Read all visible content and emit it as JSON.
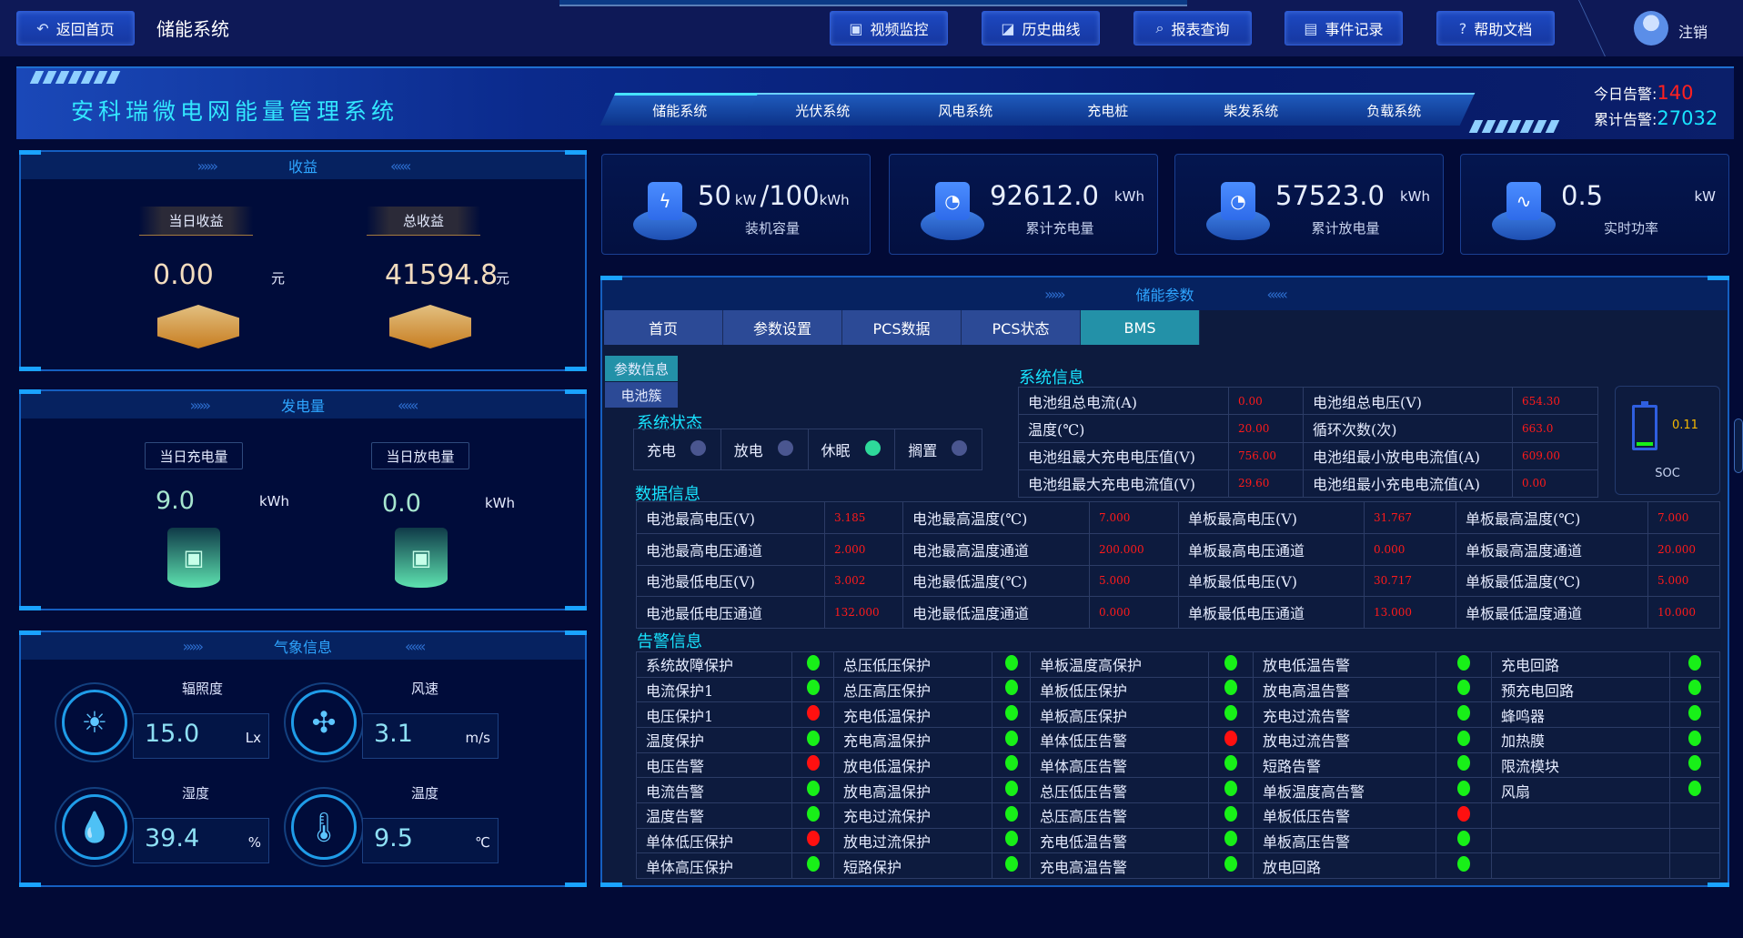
{
  "header": {
    "back_label": "返回首页",
    "page_title": "储能系统",
    "nav": [
      {
        "label": "视频监控",
        "icon": "video-icon"
      },
      {
        "label": "历史曲线",
        "icon": "chart-icon"
      },
      {
        "label": "报表查询",
        "icon": "search-icon"
      },
      {
        "label": "事件记录",
        "icon": "document-icon"
      },
      {
        "label": "帮助文档",
        "icon": "help-icon"
      }
    ],
    "logout_label": "注销"
  },
  "banner": {
    "title": "安科瑞微电网能量管理系统",
    "tabs": [
      "储能系统",
      "光伏系统",
      "风电系统",
      "充电桩",
      "柴发系统",
      "负载系统"
    ],
    "active_tab": 0,
    "today_alarm_label": "今日告警:",
    "today_alarm": "140",
    "total_alarm_label": "累计告警:",
    "total_alarm": "27032",
    "colors": {
      "today_alarm": "#ff2020",
      "total_alarm": "#19e4ff"
    }
  },
  "income": {
    "title": "收益",
    "today_label": "当日收益",
    "today_value": "0.00",
    "total_label": "总收益",
    "total_value": "41594.8",
    "unit": "元"
  },
  "energy": {
    "title": "发电量",
    "charge_label": "当日充电量",
    "charge_value": "9.0",
    "discharge_label": "当日放电量",
    "discharge_value": "0.0",
    "unit": "kWh"
  },
  "weather": {
    "title": "气象信息",
    "items": [
      {
        "label": "辐照度",
        "value": "15.0",
        "unit": "Lx",
        "icon": "sun-icon"
      },
      {
        "label": "风速",
        "value": "3.1",
        "unit": "m/s",
        "icon": "fan-icon"
      },
      {
        "label": "湿度",
        "value": "39.4",
        "unit": "%",
        "icon": "humidity-icon"
      },
      {
        "label": "温度",
        "value": "9.5",
        "unit": "℃",
        "icon": "thermometer-icon"
      }
    ]
  },
  "cards": [
    {
      "value": "50",
      "unit_inline": "kW",
      "value2": "/100",
      "unit": "kWh",
      "label": "装机容量",
      "icon": "battery-icon"
    },
    {
      "value": "92612.0",
      "unit": "kWh",
      "label": "累计充电量",
      "icon": "meter-icon"
    },
    {
      "value": "57523.0",
      "unit": "kWh",
      "label": "累计放电量",
      "icon": "meter-icon"
    },
    {
      "value": "0.5",
      "unit": "kW",
      "label": "实时功率",
      "icon": "pulse-icon"
    }
  ],
  "params": {
    "title": "储能参数",
    "tabs": [
      "首页",
      "参数设置",
      "PCS数据",
      "PCS状态",
      "BMS"
    ],
    "active_tab": 4,
    "subtabs": [
      "参数信息",
      "电池簇"
    ],
    "active_subtab": 0,
    "status_title": "系统状态",
    "status": [
      {
        "label": "充电",
        "on": false
      },
      {
        "label": "放电",
        "on": false
      },
      {
        "label": "休眠",
        "on": true
      },
      {
        "label": "搁置",
        "on": false
      }
    ],
    "sysinfo_title": "系统信息",
    "sysinfo": [
      [
        "电池组总电流(A)",
        "0.00",
        "电池组总电压(V)",
        "654.30"
      ],
      [
        "温度(℃)",
        "20.00",
        "循环次数(次)",
        "663.0"
      ],
      [
        "电池组最大充电电压值(V)",
        "756.00",
        "电池组最小放电电流值(A)",
        "609.00"
      ],
      [
        "电池组最大充电电流值(V)",
        "29.60",
        "电池组最小充电电流值(A)",
        "0.00"
      ]
    ],
    "soc_label": "SOC",
    "soc_value": "0.11",
    "data_title": "数据信息",
    "data": [
      [
        "电池最高电压(V)",
        "3.185",
        "电池最高温度(℃)",
        "7.000",
        "单板最高电压(V)",
        "31.767",
        "单板最高温度(℃)",
        "7.000"
      ],
      [
        "电池最高电压通道",
        "2.000",
        "电池最高温度通道",
        "200.000",
        "单板最高电压通道",
        "0.000",
        "单板最高温度通道",
        "20.000"
      ],
      [
        "电池最低电压(V)",
        "3.002",
        "电池最低温度(℃)",
        "5.000",
        "单板最低电压(V)",
        "30.717",
        "单板最低温度(℃)",
        "5.000"
      ],
      [
        "电池最低电压通道",
        "132.000",
        "电池最低温度通道",
        "0.000",
        "单板最低电压通道",
        "13.000",
        "单板最低温度通道",
        "10.000"
      ]
    ],
    "alarm_title": "告警信息",
    "alarms": [
      [
        [
          "系统故障保护",
          "ok"
        ],
        [
          "总压低压保护",
          "ok"
        ],
        [
          "单板温度高保护",
          "ok"
        ],
        [
          "放电低温告警",
          "ok"
        ],
        [
          "充电回路",
          "ok"
        ]
      ],
      [
        [
          "电流保护1",
          "ok"
        ],
        [
          "总压高压保护",
          "ok"
        ],
        [
          "单板低压保护",
          "ok"
        ],
        [
          "放电高温告警",
          "ok"
        ],
        [
          "预充电回路",
          "ok"
        ]
      ],
      [
        [
          "电压保护1",
          "alarm"
        ],
        [
          "充电低温保护",
          "ok"
        ],
        [
          "单板高压保护",
          "ok"
        ],
        [
          "充电过流告警",
          "ok"
        ],
        [
          "蜂鸣器",
          "ok"
        ]
      ],
      [
        [
          "温度保护",
          "ok"
        ],
        [
          "充电高温保护",
          "ok"
        ],
        [
          "单体低压告警",
          "alarm"
        ],
        [
          "放电过流告警",
          "ok"
        ],
        [
          "加热膜",
          "ok"
        ]
      ],
      [
        [
          "电压告警",
          "alarm"
        ],
        [
          "放电低温保护",
          "ok"
        ],
        [
          "单体高压告警",
          "ok"
        ],
        [
          "短路告警",
          "ok"
        ],
        [
          "限流模块",
          "ok"
        ]
      ],
      [
        [
          "电流告警",
          "ok"
        ],
        [
          "放电高温保护",
          "ok"
        ],
        [
          "总压低压告警",
          "ok"
        ],
        [
          "单板温度高告警",
          "ok"
        ],
        [
          "风扇",
          "ok"
        ]
      ],
      [
        [
          "温度告警",
          "ok"
        ],
        [
          "充电过流保护",
          "ok"
        ],
        [
          "总压高压告警",
          "ok"
        ],
        [
          "单板低压告警",
          "alarm"
        ],
        null
      ],
      [
        [
          "单体低压保护",
          "alarm"
        ],
        [
          "放电过流保护",
          "ok"
        ],
        [
          "充电低温告警",
          "ok"
        ],
        [
          "单板高压告警",
          "ok"
        ],
        null
      ],
      [
        [
          "单体高压保护",
          "ok"
        ],
        [
          "短路保护",
          "ok"
        ],
        [
          "充电高温告警",
          "ok"
        ],
        [
          "放电回路",
          "ok"
        ],
        null
      ]
    ],
    "colors": {
      "ok": "#18f018",
      "alarm": "#ff1010",
      "status_on": "#2ed99a",
      "status_off": "#4a5690",
      "active_tab": "#2391a8"
    }
  }
}
